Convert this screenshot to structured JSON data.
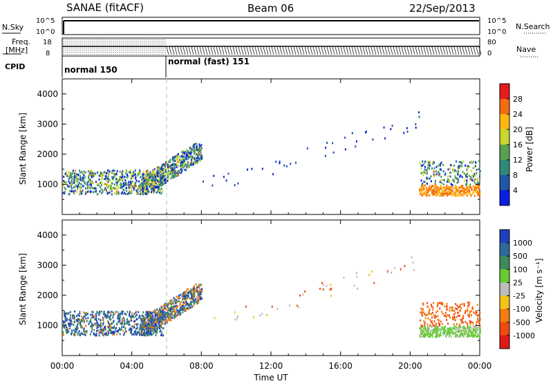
{
  "header": {
    "radar": "SANAE (fitACF)",
    "beam": "Beam 06",
    "date": "22/Sep/2013"
  },
  "top_panels": {
    "nsky_label": "N.Sky",
    "nsky_ticks": [
      "10^5",
      "10^0"
    ],
    "nsearch_label": "N.Search",
    "nsearch_ticks": [
      "10^5",
      "10^0"
    ],
    "freq_label_1": "Freq.",
    "freq_label_2": "[MHz]",
    "freq_ticks": [
      "18",
      "8"
    ],
    "nave_label": "Nave",
    "nave_ticks": [
      "80",
      "0"
    ],
    "cpid_label": "CPID",
    "cpid_modes": [
      "normal 150",
      "normal (fast) 151"
    ]
  },
  "power_panel": {
    "ylabel": "Slant Range [km]",
    "colorbar_label": "Power [dB]",
    "colorbar_ticks": [
      "28",
      "24",
      "20",
      "16",
      "12",
      "8",
      "4"
    ],
    "colorbar_colors": [
      "#e41a1c",
      "#f46d12",
      "#fdb813",
      "#c8d630",
      "#57a24f",
      "#2e8b7a",
      "#1f57a8",
      "#0a1ee0"
    ]
  },
  "velocity_panel": {
    "ylabel": "Slant Range [km]",
    "colorbar_label": "Velocity [m s⁻¹]",
    "colorbar_ticks": [
      "1000",
      "500",
      "100",
      "25",
      "-25",
      "-100",
      "-500",
      "-1000"
    ],
    "colorbar_colors": [
      "#1f3fbf",
      "#2e6a9a",
      "#3e8a5a",
      "#66cc33",
      "#bdbdbd",
      "#f2c418",
      "#f47d12",
      "#f04a10",
      "#e01818"
    ]
  },
  "x_axis": {
    "xlabel": "Time UT",
    "ticks": [
      "00:00",
      "04:00",
      "08:00",
      "12:00",
      "16:00",
      "20:00",
      "00:00"
    ]
  },
  "chart_data": {
    "type": "heatmap",
    "title": "SANAE (fitACF)   Beam 06   22/Sep/2013",
    "xlabel": "Time UT",
    "ylabel": "Slant Range [km]",
    "xlim_hours": [
      0,
      24
    ],
    "ylim_km": [
      0,
      4500
    ],
    "yticks": [
      1000,
      2000,
      3000,
      4000
    ],
    "mode_change_hour": 6.0,
    "power_regions": [
      {
        "t0": 0.0,
        "t1": 5.8,
        "r0": 600,
        "r1": 1600,
        "level": "mixed 4-20 dB"
      },
      {
        "t0": 4.5,
        "t1": 8.0,
        "r0": 700,
        "r1": 2400,
        "level": "mixed 8-24 dB"
      },
      {
        "t0": 8.0,
        "t1": 20.5,
        "r0": 800,
        "r1": 3500,
        "level": "sparse 4-8 dB"
      },
      {
        "t0": 20.5,
        "t1": 24.0,
        "r0": 600,
        "r1": 1900,
        "level": "mixed 4-24 dB"
      }
    ],
    "velocity_regions": [
      {
        "t0": 0.0,
        "t1": 5.8,
        "r0": 600,
        "r1": 1700,
        "level": "mixed 100-1000 m/s, some -500"
      },
      {
        "t0": 4.5,
        "t1": 8.0,
        "r0": 700,
        "r1": 2400,
        "level": "mixed -500 to 1000 m/s"
      },
      {
        "t0": 8.0,
        "t1": 20.5,
        "r0": 800,
        "r1": 3500,
        "level": "sparse, mostly -25 to 25 m/s"
      },
      {
        "t0": 20.5,
        "t1": 24.0,
        "r0": 600,
        "r1": 1900,
        "level": "100 to -500 m/s"
      }
    ]
  }
}
